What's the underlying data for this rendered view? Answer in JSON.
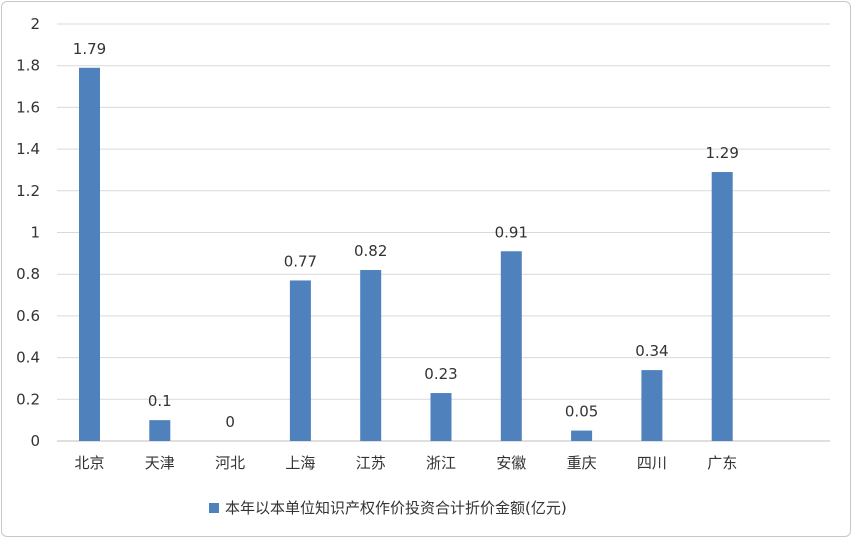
{
  "chart_data": {
    "type": "bar",
    "categories": [
      "北京",
      "天津",
      "河北",
      "上海",
      "江苏",
      "浙江",
      "安徽",
      "重庆",
      "四川",
      "广东"
    ],
    "series": [
      {
        "name": "本年以本单位知识产权作价投资合计折价金额(亿元)",
        "values": [
          1.79,
          0.1,
          0,
          0.77,
          0.82,
          0.23,
          0.91,
          0.05,
          0.34,
          1.29
        ],
        "labels": [
          "1.79",
          "0.1",
          "0",
          "0.77",
          "0.82",
          "0.23",
          "0.91",
          "0.05",
          "0.34",
          "1.29"
        ]
      }
    ],
    "yticks": [
      "0",
      "0.2",
      "0.4",
      "0.6",
      "0.8",
      "1",
      "1.2",
      "1.4",
      "1.6",
      "1.8",
      "2"
    ],
    "ylim": [
      0,
      2
    ],
    "grid": true,
    "legend_position": "bottom",
    "colors": {
      "bar": "#4f81bd",
      "grid": "#d9d9d9"
    }
  }
}
